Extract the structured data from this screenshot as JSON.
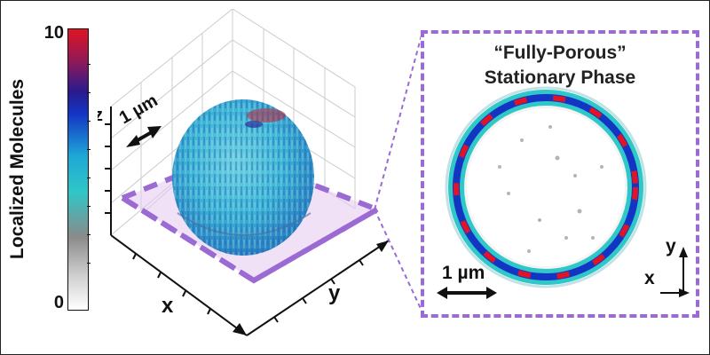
{
  "colorbar": {
    "title": "Localized Molecules",
    "max_label": "10",
    "min_label": "0",
    "colors": [
      "#ffffff",
      "#d0d0d0",
      "#8a8a8a",
      "#2fc7c7",
      "#1ea6d6",
      "#1434c4",
      "#2a1a8c",
      "#8b1a5a",
      "#e01424"
    ]
  },
  "left_plot": {
    "z_label": "z",
    "x_label": "x",
    "y_label": "y",
    "scale_label": "1 µm"
  },
  "right_panel": {
    "title_line1": "“Fully-Porous”",
    "title_line2": "Stationary Phase",
    "scale_label": "1 µm",
    "x_label": "x",
    "y_label": "y"
  },
  "colors": {
    "dashed_accent": "#9b6bd3",
    "plane_fill": "#e4c8f0",
    "ring_red": "#e01424",
    "ring_blue": "#1434c4",
    "ring_cyan": "#2fc7c7"
  }
}
